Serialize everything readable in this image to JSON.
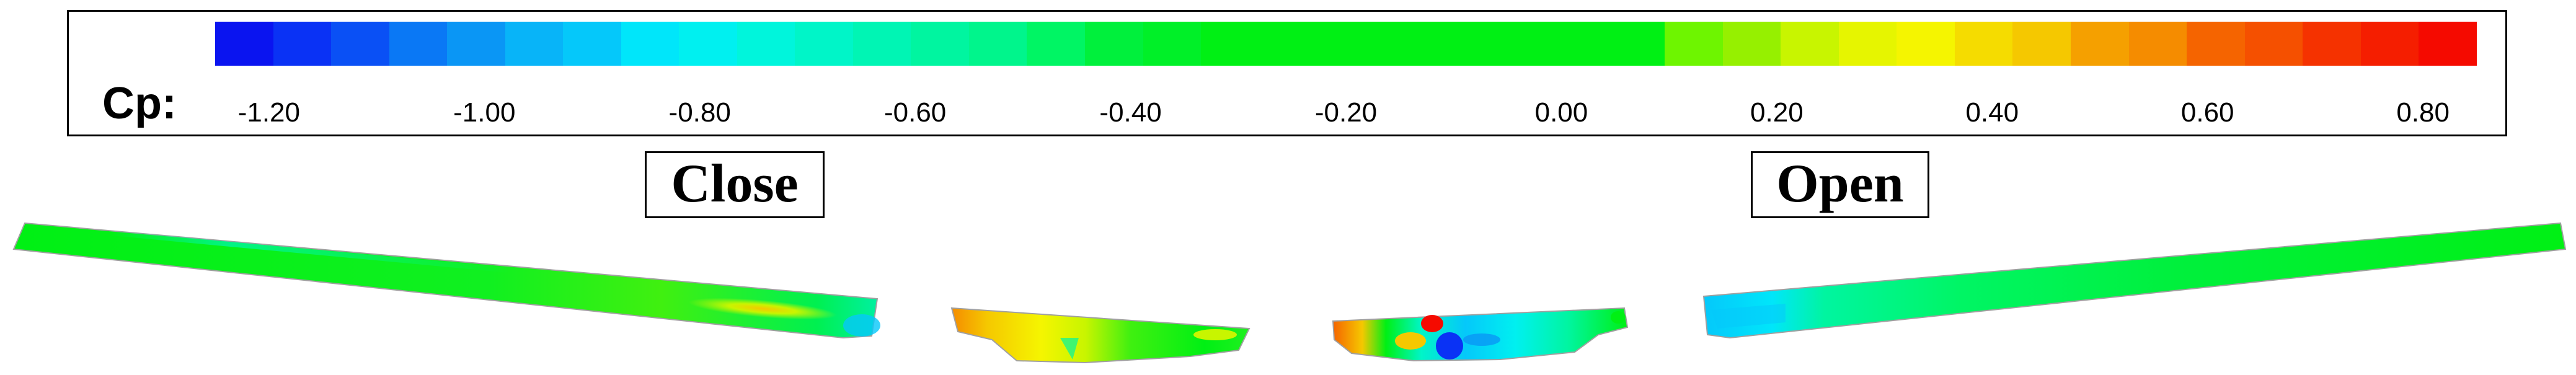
{
  "legend": {
    "title": "Cp:",
    "ticks": [
      {
        "value": -1.2,
        "label": "-1.20"
      },
      {
        "value": -1.0,
        "label": "-1.00"
      },
      {
        "value": -0.8,
        "label": "-0.80"
      },
      {
        "value": -0.6,
        "label": "-0.60"
      },
      {
        "value": -0.4,
        "label": "-0.40"
      },
      {
        "value": -0.2,
        "label": "-0.20"
      },
      {
        "value": 0.0,
        "label": "0.00"
      },
      {
        "value": 0.2,
        "label": "0.20"
      },
      {
        "value": 0.4,
        "label": "0.40"
      },
      {
        "value": 0.6,
        "label": "0.60"
      },
      {
        "value": 0.8,
        "label": "0.80"
      }
    ],
    "range": [
      -1.25,
      0.85
    ],
    "colormap": [
      "#0a14f0",
      "#0a32f5",
      "#0a50f5",
      "#0a78f5",
      "#0a96f5",
      "#08b4f8",
      "#05c8fa",
      "#00e6fa",
      "#00f0f0",
      "#00f5dc",
      "#00f5c8",
      "#00f5b4",
      "#00f5a0",
      "#00f58c",
      "#00f564",
      "#00f03c",
      "#00f028",
      "#00f014",
      "#00f014",
      "#00f014",
      "#00f014",
      "#00f014",
      "#00f014",
      "#00f014",
      "#00f014",
      "#6ef500",
      "#96f000",
      "#c8f500",
      "#e6f500",
      "#f5f500",
      "#f5dc00",
      "#f5c800",
      "#f5a000",
      "#f58c00",
      "#f56400",
      "#f55000",
      "#f53200",
      "#f51e00",
      "#f50a00"
    ]
  },
  "labels": {
    "close": "Close",
    "open": "Open"
  },
  "colors": {
    "deck_base": "#00f014",
    "negative_strong": "#0a50f5",
    "suction": "#05c8fa",
    "positive": "#f5c800",
    "stagnation": "#f50a00"
  }
}
